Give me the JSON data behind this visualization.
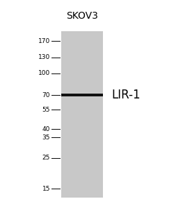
{
  "title": "SKOV3",
  "band_label": "LIR-1",
  "band_kda": 70,
  "marker_weights": [
    170,
    130,
    100,
    70,
    55,
    40,
    35,
    25,
    15
  ],
  "lane_color": "#c8c8c8",
  "band_color": "#111111",
  "bg_color": "#ffffff",
  "title_fontsize": 10,
  "marker_fontsize": 6.5,
  "band_label_fontsize": 12
}
